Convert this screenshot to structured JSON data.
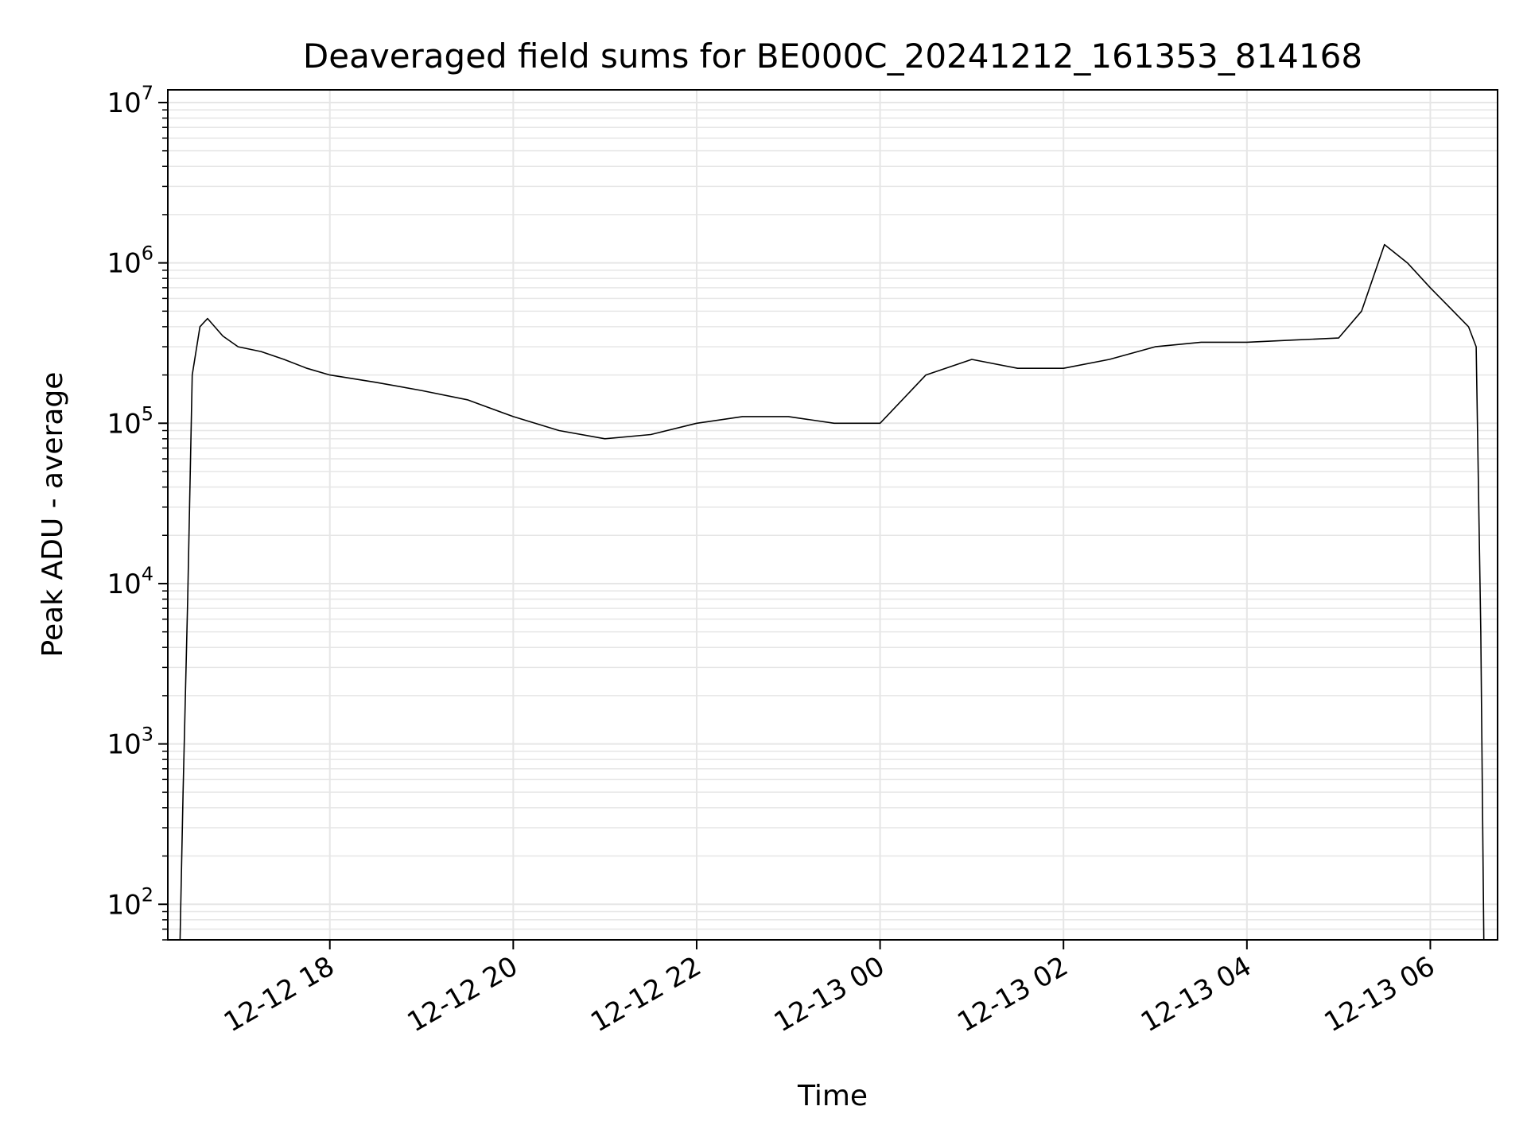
{
  "chart_data": {
    "type": "line",
    "title": "Deaveraged field sums for BE000C_20241212_161353_814168",
    "xlabel": "Time",
    "ylabel": "Peak ADU - average",
    "yscale": "log",
    "ylim": [
      60,
      12000000
    ],
    "xlim": [
      "2024-12-12 16:14",
      "2024-12-13 06:44"
    ],
    "grid": true,
    "line_color": "#000000",
    "grid_color": "#e6e6e6",
    "x_ticks": [
      {
        "label": "12-12 18",
        "value": "2024-12-12 18:00"
      },
      {
        "label": "12-12 20",
        "value": "2024-12-12 20:00"
      },
      {
        "label": "12-12 22",
        "value": "2024-12-12 22:00"
      },
      {
        "label": "12-13 00",
        "value": "2024-12-13 00:00"
      },
      {
        "label": "12-13 02",
        "value": "2024-12-13 02:00"
      },
      {
        "label": "12-13 04",
        "value": "2024-12-13 04:00"
      },
      {
        "label": "12-13 06",
        "value": "2024-12-13 06:00"
      }
    ],
    "y_ticks": [
      {
        "value": 100,
        "base": "10",
        "exp": "2"
      },
      {
        "value": 1000,
        "base": "10",
        "exp": "3"
      },
      {
        "value": 10000,
        "base": "10",
        "exp": "4"
      },
      {
        "value": 100000,
        "base": "10",
        "exp": "5"
      },
      {
        "value": 1000000,
        "base": "10",
        "exp": "6"
      },
      {
        "value": 10000000,
        "base": "10",
        "exp": "7"
      }
    ],
    "series": [
      {
        "x": [
          "2024-12-12 16:22",
          "2024-12-12 16:24",
          "2024-12-12 16:27",
          "2024-12-12 16:30",
          "2024-12-12 16:35",
          "2024-12-12 16:40",
          "2024-12-12 16:50",
          "2024-12-12 17:00",
          "2024-12-12 17:15",
          "2024-12-12 17:30",
          "2024-12-12 17:45",
          "2024-12-12 18:00",
          "2024-12-12 18:30",
          "2024-12-12 19:00",
          "2024-12-12 19:30",
          "2024-12-12 20:00",
          "2024-12-12 20:30",
          "2024-12-12 21:00",
          "2024-12-12 21:30",
          "2024-12-12 22:00",
          "2024-12-12 22:30",
          "2024-12-12 23:00",
          "2024-12-12 23:30",
          "2024-12-13 00:00",
          "2024-12-13 00:30",
          "2024-12-13 01:00",
          "2024-12-13 01:30",
          "2024-12-13 02:00",
          "2024-12-13 02:30",
          "2024-12-13 03:00",
          "2024-12-13 03:30",
          "2024-12-13 04:00",
          "2024-12-13 04:30",
          "2024-12-13 05:00",
          "2024-12-13 05:15",
          "2024-12-13 05:30",
          "2024-12-13 05:45",
          "2024-12-13 06:00",
          "2024-12-13 06:15",
          "2024-12-13 06:25",
          "2024-12-13 06:30",
          "2024-12-13 06:33",
          "2024-12-13 06:35"
        ],
        "y": [
          60,
          500,
          8000,
          200000,
          400000,
          450000,
          350000,
          300000,
          280000,
          250000,
          220000,
          200000,
          180000,
          160000,
          140000,
          110000,
          90000,
          80000,
          85000,
          100000,
          110000,
          110000,
          100000,
          100000,
          200000,
          250000,
          220000,
          220000,
          250000,
          300000,
          320000,
          320000,
          330000,
          340000,
          500000,
          1300000,
          1000000,
          700000,
          500000,
          400000,
          300000,
          5000,
          60
        ]
      }
    ]
  }
}
